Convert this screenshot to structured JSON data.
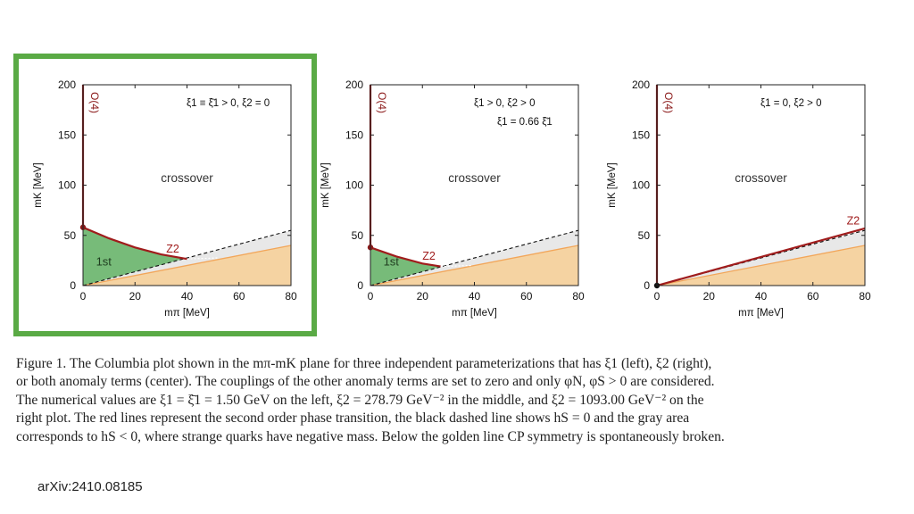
{
  "chart_data": [
    {
      "type": "area",
      "xlabel": "mπ [MeV]",
      "ylabel": "mK [MeV]",
      "xlim": [
        0,
        80
      ],
      "ylim": [
        0,
        200
      ],
      "xticks": [
        "0",
        "20",
        "40",
        "60",
        "80"
      ],
      "yticks": [
        "0",
        "50",
        "100",
        "150",
        "200"
      ],
      "legend_text": "ξ1 ≡ ξ̄1 > 0, ξ2 = 0",
      "legend_text2": "",
      "region_label_crossover": "crossover",
      "region_label_first_order": "1st",
      "line_label_o4": "O(4)",
      "line_label_z2": "Z2",
      "o4_point": [
        0,
        58
      ],
      "z2_curve": [
        [
          0,
          58
        ],
        [
          10,
          47
        ],
        [
          20,
          38
        ],
        [
          30,
          31
        ],
        [
          40,
          26.5
        ]
      ],
      "hs_zero_line": [
        [
          0,
          0
        ],
        [
          80,
          55
        ]
      ],
      "golden_line": [
        [
          0,
          0
        ],
        [
          80,
          40
        ]
      ],
      "highlighted": true
    },
    {
      "type": "area",
      "xlabel": "mπ [MeV]",
      "ylabel": "mK [MeV]",
      "xlim": [
        0,
        80
      ],
      "ylim": [
        0,
        200
      ],
      "xticks": [
        "0",
        "20",
        "40",
        "60",
        "80"
      ],
      "yticks": [
        "0",
        "50",
        "100",
        "150",
        "200"
      ],
      "legend_text": "ξ1 > 0, ξ2 > 0",
      "legend_text2": "ξ1 = 0.66 ξ̄1",
      "region_label_crossover": "crossover",
      "region_label_first_order": "1st",
      "line_label_o4": "O(4)",
      "line_label_z2": "Z2",
      "o4_point": [
        0,
        38
      ],
      "z2_curve": [
        [
          0,
          38
        ],
        [
          10,
          29
        ],
        [
          20,
          22
        ],
        [
          27,
          19
        ]
      ],
      "hs_zero_line": [
        [
          0,
          0
        ],
        [
          80,
          55
        ]
      ],
      "golden_line": [
        [
          0,
          0
        ],
        [
          80,
          40
        ]
      ],
      "highlighted": false
    },
    {
      "type": "area",
      "xlabel": "mπ [MeV]",
      "ylabel": "mK [MeV]",
      "xlim": [
        0,
        80
      ],
      "ylim": [
        0,
        200
      ],
      "xticks": [
        "0",
        "20",
        "40",
        "60",
        "80"
      ],
      "yticks": [
        "0",
        "50",
        "100",
        "150",
        "200"
      ],
      "legend_text": "ξ1 = 0, ξ2 > 0",
      "legend_text2": "",
      "region_label_crossover": "crossover",
      "region_label_first_order": "",
      "line_label_o4": "O(4)",
      "line_label_z2": "Z2",
      "o4_point": [
        0,
        0
      ],
      "z2_curve": [
        [
          0,
          0
        ],
        [
          80,
          57
        ]
      ],
      "hs_zero_line": [
        [
          0,
          0
        ],
        [
          80,
          55
        ]
      ],
      "golden_line": [
        [
          0,
          0
        ],
        [
          80,
          40
        ]
      ],
      "highlighted": false
    }
  ],
  "colors": {
    "o4_line": "#8b1a1a",
    "z2_line": "#a01c1c",
    "first_order_fill": "#77bb79",
    "negative_mass_fill": "#e8e8e8",
    "golden_fill": "#f5d3a2",
    "golden_line": "#f2a65a",
    "highlight_border": "#5aaa45"
  },
  "caption": [
    "Figure 1. The Columbia plot shown in the mπ-mK plane for three independent parameterizations that has ξ1 (left), ξ2 (right),",
    "or both anomaly terms (center). The couplings of the other anomaly terms are set to zero and only φN, φS > 0 are considered.",
    "The numerical values are ξ1 = ξ̄1 = 1.50 GeV on the left, ξ2 = 278.79 GeV⁻² in the middle, and ξ2 = 1093.00 GeV⁻² on the",
    "right plot. The red lines represent the second order phase transition, the black dashed line shows hS = 0 and the gray area",
    "corresponds to hS < 0, where strange quarks have negative mass. Below the golden line CP symmetry is spontaneously broken."
  ],
  "source": "arXiv:2410.08185"
}
